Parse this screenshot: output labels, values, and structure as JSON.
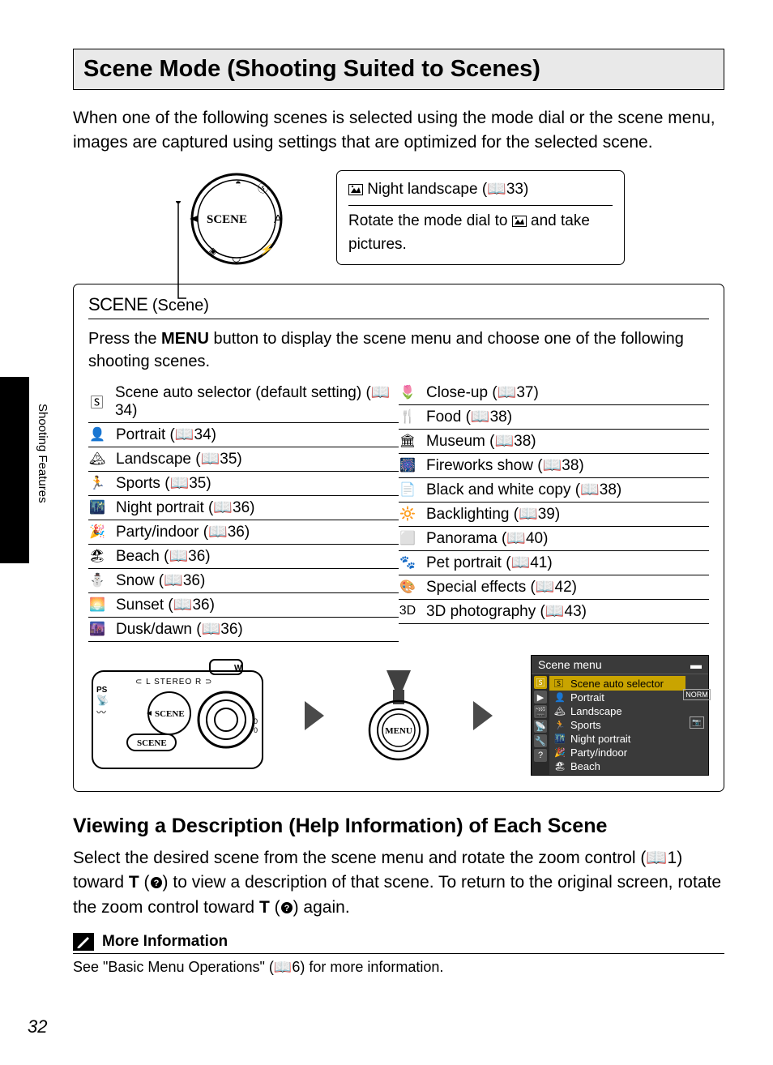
{
  "page": {
    "number": "32",
    "side_label": "Shooting Features",
    "title": "Scene Mode (Shooting Suited to Scenes)",
    "intro": "When one of the following scenes is selected using the mode dial or the scene menu, images are captured using settings that are optimized for the selected scene."
  },
  "callout": {
    "title_prefix": "Night landscape (",
    "title_page": "33)",
    "body_before": "Rotate the mode dial to ",
    "body_after": " and take pictures."
  },
  "scene_box": {
    "title_scene": "SCENE",
    "title_paren": " (Scene)",
    "desc_before": "Press the ",
    "desc_menu": "MENU",
    "desc_after": " button to display the scene menu and choose one of the following shooting scenes."
  },
  "scenes_left": [
    {
      "icon": "🅂",
      "label": "Scene auto selector (default setting) (",
      "page": "34)"
    },
    {
      "icon": "👤",
      "label": "Portrait (",
      "page": "34)"
    },
    {
      "icon": "🏔",
      "label": "Landscape (",
      "page": "35)"
    },
    {
      "icon": "🏃",
      "label": "Sports (",
      "page": "35)"
    },
    {
      "icon": "🌃",
      "label": "Night portrait (",
      "page": "36)"
    },
    {
      "icon": "🎉",
      "label": "Party/indoor (",
      "page": "36)"
    },
    {
      "icon": "🏖",
      "label": "Beach (",
      "page": "36)"
    },
    {
      "icon": "⛄",
      "label": "Snow (",
      "page": "36)"
    },
    {
      "icon": "🌅",
      "label": "Sunset (",
      "page": "36)"
    },
    {
      "icon": "🌆",
      "label": "Dusk/dawn (",
      "page": "36)"
    }
  ],
  "scenes_right": [
    {
      "icon": "🌷",
      "label": "Close-up (",
      "page": "37)"
    },
    {
      "icon": "🍴",
      "label": "Food (",
      "page": "38)"
    },
    {
      "icon": "🏛",
      "label": "Museum (",
      "page": "38)"
    },
    {
      "icon": "🎆",
      "label": "Fireworks show (",
      "page": "38)"
    },
    {
      "icon": "📄",
      "label": "Black and white copy (",
      "page": "38)"
    },
    {
      "icon": "🔆",
      "label": "Backlighting (",
      "page": "39)"
    },
    {
      "icon": "⬜",
      "label": "Panorama (",
      "page": "40)"
    },
    {
      "icon": "🐾",
      "label": "Pet portrait (",
      "page": "41)"
    },
    {
      "icon": "🎨",
      "label": "Special effects (",
      "page": "42)"
    },
    {
      "icon": "3D",
      "label": "3D photography (",
      "page": "43)"
    }
  ],
  "scene_menu": {
    "header": "Scene menu",
    "items": [
      {
        "icon": "🅂",
        "label": "Scene auto selector",
        "selected": true
      },
      {
        "icon": "👤",
        "label": "Portrait",
        "selected": false
      },
      {
        "icon": "🏔",
        "label": "Landscape",
        "selected": false
      },
      {
        "icon": "🏃",
        "label": "Sports",
        "selected": false
      },
      {
        "icon": "🌃",
        "label": "Night portrait",
        "selected": false
      },
      {
        "icon": "🎉",
        "label": "Party/indoor",
        "selected": false
      },
      {
        "icon": "🏖",
        "label": "Beach",
        "selected": false
      }
    ],
    "right_badges": [
      "NORM",
      "📷"
    ]
  },
  "viewing": {
    "heading": "Viewing a Description (Help Information) of Each Scene",
    "body": "Select the desired scene from the scene menu and rotate the zoom control (📖1) toward T (❓) to view a description of that scene. To return to the original screen, rotate the zoom control toward T (❓) again."
  },
  "more_info": {
    "title": "More Information",
    "body": "See \"Basic Menu Operations\" (📖6) for more information."
  }
}
